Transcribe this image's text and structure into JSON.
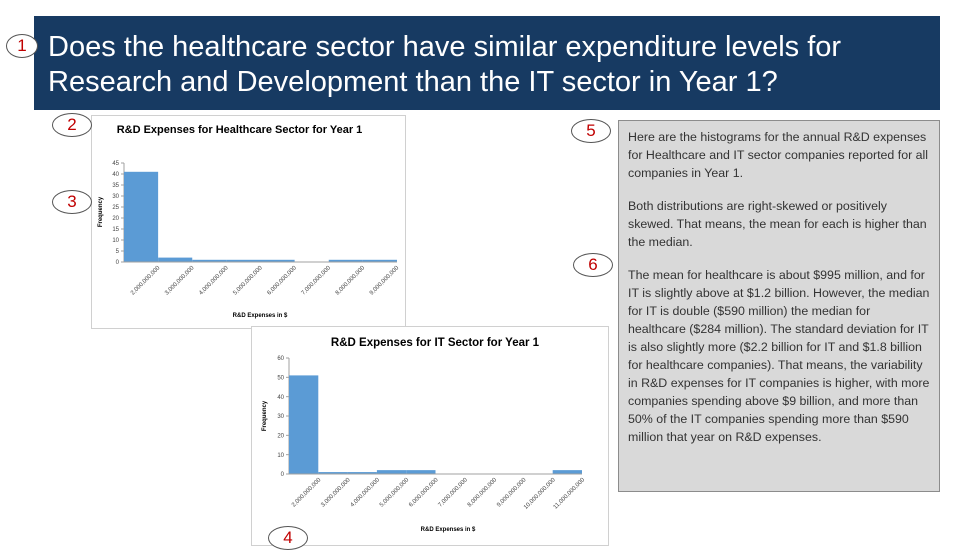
{
  "slide": {
    "title": "Does the healthcare sector have similar expenditure levels for Research and Development than the IT sector in Year 1?",
    "markers": [
      "1",
      "2",
      "3",
      "4",
      "5",
      "6"
    ],
    "paragraphs": [
      "Here are the histograms for the annual R&D expenses for Healthcare and IT sector companies reported for all companies in Year 1.",
      "Both distributions are right-skewed or positively skewed. That means, the mean for each is higher than the median.",
      "The mean for healthcare is about $995 million, and for IT is slightly above at $1.2 billion. However, the median for IT is double ($590 million) the median for healthcare ($284 million). The standard deviation for IT is also slightly more ($2.2 billion for IT and $1.8 billion for healthcare companies). That means, the variability in R&D expenses for IT companies is higher, with more companies spending above $9 billion, and more than 50% of the IT companies spending more than $590 million that year on R&D expenses."
    ]
  },
  "chart_data": [
    {
      "type": "bar",
      "title": "R&D  Expenses for Healthcare Sector for Year 1",
      "xlabel": "R&D Expenses in $",
      "ylabel": "Frequency",
      "ylim": [
        0,
        45
      ],
      "yticks": [
        "0",
        "5",
        "10",
        "15",
        "20",
        "25",
        "30",
        "35",
        "40",
        "45"
      ],
      "categories": [
        "2,000,000,000",
        "3,000,000,000",
        "4,000,000,000",
        "5,000,000,000",
        "6,000,000,000",
        "7,000,000,000",
        "8,000,000,000",
        "9,000,000,000"
      ],
      "values": [
        41,
        2,
        1,
        1,
        1,
        0,
        1,
        1
      ],
      "color": "#5b9bd5",
      "grid": false,
      "legend": "none"
    },
    {
      "type": "bar",
      "title": "R&D  Expenses for IT Sector for Year 1",
      "xlabel": "R&D Expenses in $",
      "ylabel": "Frequency",
      "ylim": [
        0,
        60
      ],
      "yticks": [
        "0",
        "10",
        "20",
        "30",
        "40",
        "50",
        "60"
      ],
      "categories": [
        "2,000,000,000",
        "3,000,000,000",
        "4,000,000,000",
        "5,000,000,000",
        "6,000,000,000",
        "7,000,000,000",
        "8,000,000,000",
        "9,000,000,000",
        "10,000,000,000",
        "11,000,000,000"
      ],
      "values": [
        51,
        1,
        1,
        2,
        2,
        0,
        0,
        0,
        0,
        2
      ],
      "color": "#5b9bd5",
      "grid": false,
      "legend": "none"
    }
  ]
}
